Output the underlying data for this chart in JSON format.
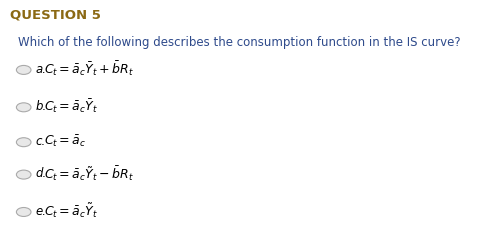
{
  "title": "QUESTION 5",
  "title_color": "#8B6914",
  "question": "Which of the following describes the consumption function in the IS curve?",
  "question_color": "#2E4A8B",
  "bg_color": "#ffffff",
  "options": [
    {
      "label": "a.",
      "formula": "$C_t = \\bar{a}_c\\bar{Y}_t + \\bar{b}R_t$",
      "selected": false
    },
    {
      "label": "b.",
      "formula": "$C_t = \\bar{a}_c\\bar{Y}_t$",
      "selected": false
    },
    {
      "label": "c.",
      "formula": "$C_t = \\bar{a}_c$",
      "selected": false
    },
    {
      "label": "d.",
      "formula": "$C_t = \\bar{a}_c\\tilde{Y}_t - \\bar{b}R_t$",
      "selected": false
    },
    {
      "label": "e.",
      "formula": "$C_t = \\bar{a}_c\\tilde{Y}_t$",
      "selected": false
    }
  ],
  "circle_color": "#aaaaaa",
  "circle_fill": "#e8e8e8",
  "formula_color": "#000000",
  "label_color": "#000000"
}
